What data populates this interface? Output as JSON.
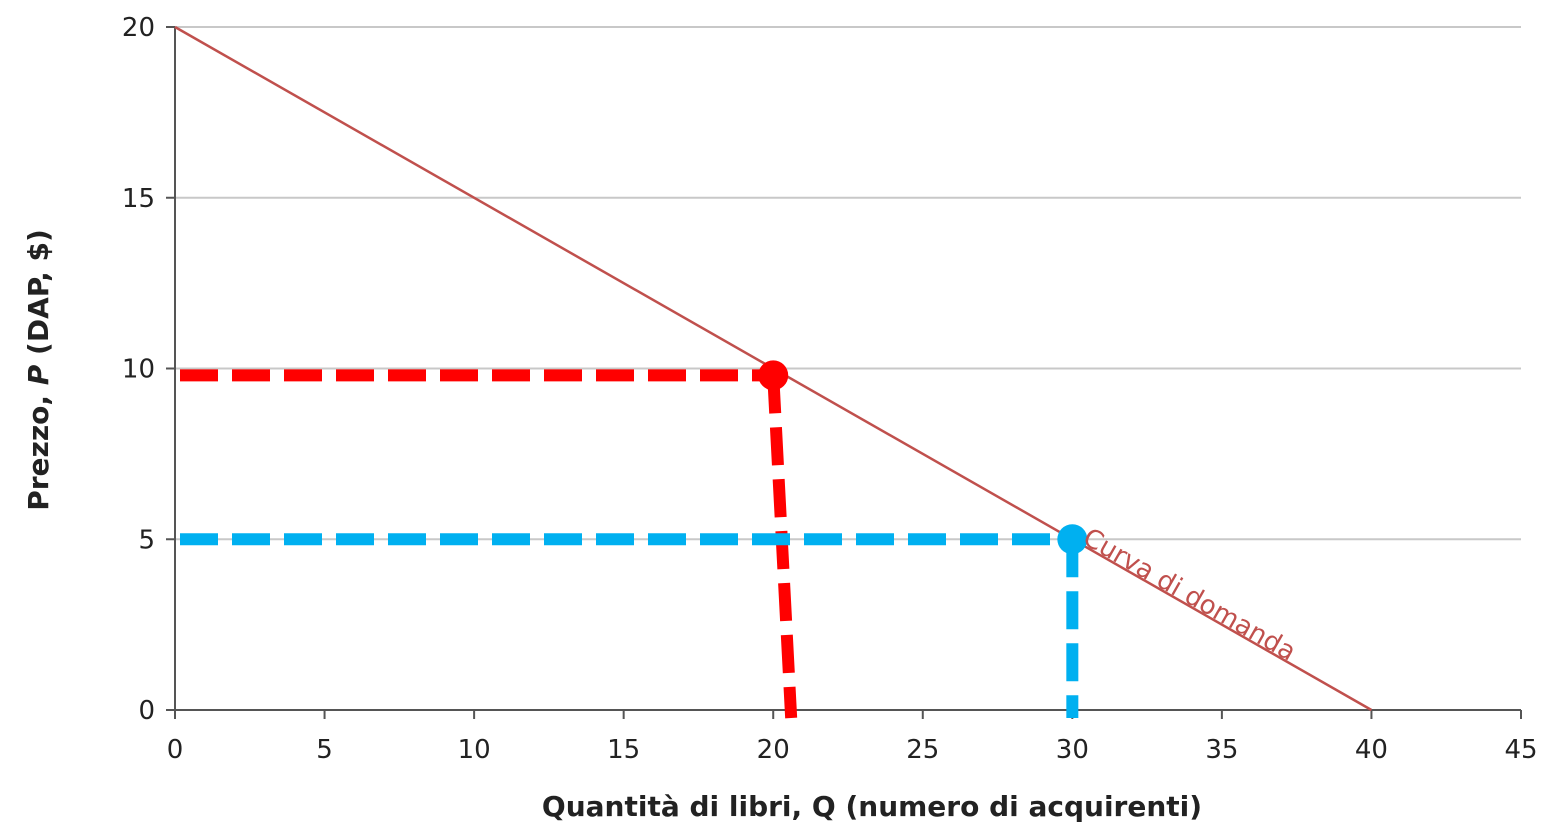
{
  "chart_data": {
    "type": "line",
    "xlabel": "Quantità di libri, Q (numero di acquirenti)",
    "ylabel_prefix": "Prezzo, ",
    "ylabel_var": "P",
    "ylabel_suffix": " (DAP, $)",
    "xlim": [
      0,
      45
    ],
    "ylim": [
      0,
      20
    ],
    "x_ticks": [
      0,
      5,
      10,
      15,
      20,
      25,
      30,
      35,
      40,
      45
    ],
    "y_ticks": [
      0,
      5,
      10,
      15,
      20
    ],
    "grid": "horizontal",
    "series": [
      {
        "name": "Curva di domanda",
        "color": "#c0504d",
        "points": [
          [
            0,
            20
          ],
          [
            40,
            0
          ]
        ]
      }
    ],
    "highlights": [
      {
        "x": 20,
        "y": 9.8,
        "x_bottom": 20.6,
        "color": "#ff0000"
      },
      {
        "x": 30,
        "y": 5,
        "x_bottom": 30,
        "color": "#00b0f0"
      }
    ],
    "curve_label": {
      "text": "Curva di domanda",
      "color": "#c0504d"
    }
  }
}
